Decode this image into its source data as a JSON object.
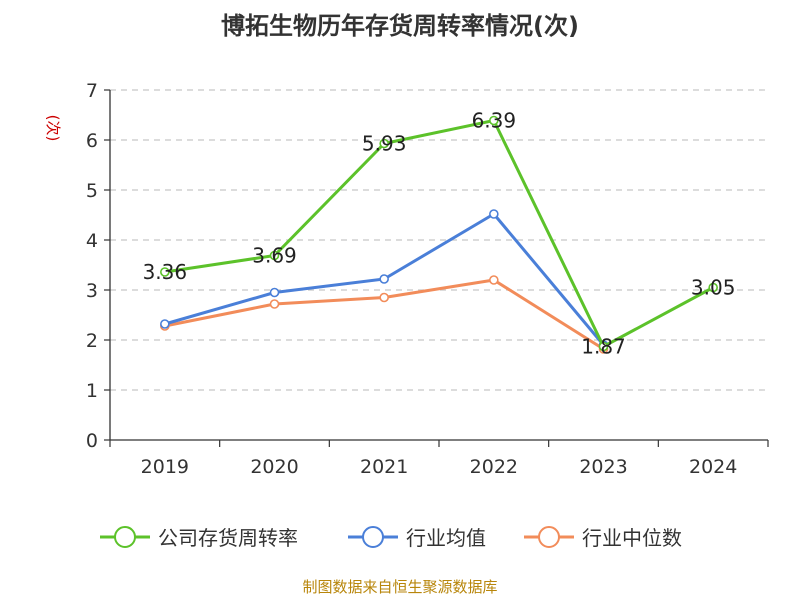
{
  "chart_data": {
    "type": "line",
    "title": "博拓生物历年存货周转率情况(次)",
    "ylabel": "(次)",
    "xlabel": "",
    "categories": [
      "2019",
      "2020",
      "2021",
      "2022",
      "2023",
      "2024"
    ],
    "ylim": [
      0,
      7
    ],
    "yticks": [
      0,
      1,
      2,
      3,
      4,
      5,
      6,
      7
    ],
    "grid": true,
    "legend_position": "bottom",
    "series": [
      {
        "name": "公司存货周转率",
        "color": "#5cc22a",
        "values": [
          3.36,
          3.69,
          5.93,
          6.39,
          1.87,
          3.05
        ],
        "labels": [
          "3.36",
          "3.69",
          "5.93",
          "6.39",
          "1.87",
          "3.05"
        ]
      },
      {
        "name": "行业均值",
        "color": "#4a7fd8",
        "values": [
          2.32,
          2.95,
          3.22,
          4.52,
          1.9,
          null
        ]
      },
      {
        "name": "行业中位数",
        "color": "#f28c5a",
        "values": [
          2.28,
          2.72,
          2.85,
          3.2,
          1.82,
          null
        ]
      }
    ]
  },
  "source_note": "制图数据来自恒生聚源数据库"
}
